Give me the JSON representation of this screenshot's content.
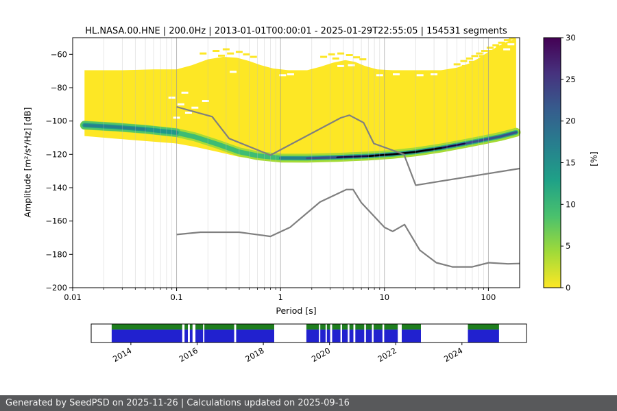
{
  "title": "HL.NASA.00.HNE | 200.0Hz | 2013-01-01T00:00:01 - 2025-01-29T22:55:05 | 154531 segments",
  "footer": {
    "text": "Generated by SeedPSD on 2025-11-26 | Calculations updated on 2025-09-16"
  },
  "chart_data": {
    "type": "heatmap",
    "title": "HL.NASA.00.HNE | 200.0Hz | 2013-01-01T00:00:01 - 2025-01-29T22:55:05 | 154531 segments",
    "xlabel": "Period [s]",
    "ylabel": "Amplitude [m²/s⁴/Hz] [dB]",
    "x_scale": "log",
    "xlim": [
      0.01,
      200
    ],
    "ylim": [
      -200,
      -50
    ],
    "x_tick_values": [
      0.01,
      0.1,
      1,
      10,
      100
    ],
    "x_tick_labels": [
      "0.01",
      "0.1",
      "1",
      "10",
      "100"
    ],
    "y_tick_values": [
      -60,
      -80,
      -100,
      -120,
      -140,
      -160,
      -180,
      -200
    ],
    "grid": {
      "vertical_major": true,
      "vertical_minor": true,
      "horizontal": false
    },
    "colorbar": {
      "label": "[%]",
      "range": [
        0,
        30
      ],
      "ticks": [
        0,
        5,
        10,
        15,
        20,
        25,
        30
      ],
      "colormap": "viridis_r",
      "stops_top_to_bottom": [
        "#440154",
        "#46327e",
        "#365c8d",
        "#277f8e",
        "#1fa187",
        "#4ac16d",
        "#a0da39",
        "#fde725"
      ]
    },
    "histogram": {
      "fill_color": "#fde725",
      "top_edge": [
        [
          0.013,
          -69.5
        ],
        [
          0.03,
          -69.5
        ],
        [
          0.06,
          -69
        ],
        [
          0.1,
          -69
        ],
        [
          0.14,
          -66.5
        ],
        [
          0.2,
          -63
        ],
        [
          0.28,
          -61.5
        ],
        [
          0.38,
          -62
        ],
        [
          0.5,
          -64
        ],
        [
          0.65,
          -66.5
        ],
        [
          0.85,
          -68.5
        ],
        [
          1.2,
          -69.5
        ],
        [
          1.8,
          -69.5
        ],
        [
          2.4,
          -67.5
        ],
        [
          3.2,
          -65
        ],
        [
          4.2,
          -63.5
        ],
        [
          5.2,
          -64.5
        ],
        [
          6.5,
          -67
        ],
        [
          8.5,
          -69
        ],
        [
          12,
          -69.5
        ],
        [
          20,
          -69.5
        ],
        [
          35,
          -69.5
        ],
        [
          50,
          -68
        ],
        [
          65,
          -65.5
        ],
        [
          80,
          -62.5
        ],
        [
          100,
          -58.5
        ],
        [
          125,
          -55
        ],
        [
          150,
          -52.5
        ],
        [
          185,
          -50.5
        ]
      ],
      "bottom_edge": [
        [
          0.013,
          -109
        ],
        [
          0.025,
          -110.5
        ],
        [
          0.05,
          -112
        ],
        [
          0.1,
          -113.5
        ],
        [
          0.15,
          -115.5
        ],
        [
          0.25,
          -118.5
        ],
        [
          0.4,
          -121.5
        ],
        [
          0.6,
          -123
        ],
        [
          1,
          -124
        ],
        [
          1.8,
          -123.8
        ],
        [
          3.5,
          -123
        ],
        [
          7,
          -122.3
        ],
        [
          12,
          -121.3
        ],
        [
          20,
          -119.8
        ],
        [
          35,
          -117.5
        ],
        [
          60,
          -114.8
        ],
        [
          90,
          -112.5
        ],
        [
          130,
          -110.5
        ],
        [
          185,
          -108
        ]
      ],
      "mode_ridge": [
        [
          0.013,
          -102.5
        ],
        [
          0.025,
          -103.5
        ],
        [
          0.05,
          -105
        ],
        [
          0.1,
          -107
        ],
        [
          0.15,
          -109.5
        ],
        [
          0.25,
          -114
        ],
        [
          0.4,
          -118.5
        ],
        [
          0.6,
          -120.8
        ],
        [
          1,
          -122.2
        ],
        [
          1.8,
          -122.3
        ],
        [
          3.5,
          -121.8
        ],
        [
          7,
          -121
        ],
        [
          12,
          -120
        ],
        [
          20,
          -118.5
        ],
        [
          35,
          -116.2
        ],
        [
          60,
          -113.5
        ],
        [
          90,
          -111.3
        ],
        [
          130,
          -109.3
        ],
        [
          185,
          -106.8
        ]
      ],
      "ridge_layers": [
        {
          "pmin": 0.013,
          "pmax": 185,
          "color": "#a5db36",
          "width": 13
        },
        {
          "pmin": 0.013,
          "pmax": 0.12,
          "color": "#54c568",
          "width": 12
        },
        {
          "pmin": 0.013,
          "pmax": 185,
          "color": "#3dbc74",
          "width": 7
        },
        {
          "pmin": 0.013,
          "pmax": 0.1,
          "color": "#1f978b",
          "width": 6
        },
        {
          "pmin": 0.013,
          "pmax": 0.05,
          "color": "#277f8e",
          "width": 3.5
        },
        {
          "pmin": 0.9,
          "pmax": 185,
          "color": "#26828e",
          "width": 4.5
        },
        {
          "pmin": 1.4,
          "pmax": 185,
          "color": "#3b518b",
          "width": 3
        },
        {
          "pmin": 2.2,
          "pmax": 80,
          "color": "#17094a",
          "width": 2.4
        },
        {
          "pmin": 6.5,
          "pmax": 36,
          "color": "#000004",
          "width": 2.6
        }
      ],
      "yellow_dashes": [
        [
          0.18,
          -59.5
        ],
        [
          0.24,
          -58
        ],
        [
          0.3,
          -57
        ],
        [
          0.33,
          -59.5
        ],
        [
          0.4,
          -58.5
        ],
        [
          0.47,
          -60
        ],
        [
          0.55,
          -61.5
        ],
        [
          0.27,
          -60.8
        ],
        [
          2.6,
          -61.5
        ],
        [
          3.1,
          -60
        ],
        [
          3.8,
          -59.5
        ],
        [
          4.6,
          -60.5
        ],
        [
          5.4,
          -61.8
        ],
        [
          3.4,
          -62.5
        ],
        [
          6.2,
          -63
        ],
        [
          50,
          -66
        ],
        [
          58,
          -64
        ],
        [
          66,
          -62.5
        ],
        [
          74,
          -61
        ],
        [
          82,
          -59.5
        ],
        [
          92,
          -58
        ],
        [
          104,
          -56
        ],
        [
          118,
          -54.5
        ],
        [
          134,
          -53
        ],
        [
          152,
          -51.5
        ],
        [
          170,
          -50.5
        ],
        [
          88,
          -61
        ],
        [
          108,
          -58
        ],
        [
          128,
          -55.5
        ],
        [
          145,
          -53.5
        ],
        [
          60,
          -67
        ],
        [
          70,
          -64.5
        ]
      ],
      "white_dashes": [
        [
          0.09,
          -86
        ],
        [
          0.11,
          -90
        ],
        [
          0.13,
          -95
        ],
        [
          0.1,
          -98
        ],
        [
          0.15,
          -92
        ],
        [
          0.19,
          -88
        ],
        [
          0.12,
          -83
        ],
        [
          1.05,
          -72.5
        ],
        [
          1.25,
          -72
        ],
        [
          9,
          -72.5
        ],
        [
          13,
          -72
        ],
        [
          22,
          -72.5
        ],
        [
          30,
          -72
        ],
        [
          3.8,
          -67
        ],
        [
          4.8,
          -66.5
        ],
        [
          0.35,
          -70.5
        ],
        [
          150,
          -57
        ],
        [
          165,
          -54
        ]
      ]
    },
    "noise_models": {
      "color": "#7f7f7f",
      "nhnm": [
        [
          0.1,
          -91.5
        ],
        [
          0.22,
          -97.4
        ],
        [
          0.32,
          -110.5
        ],
        [
          0.8,
          -120.5
        ],
        [
          3.8,
          -98.1
        ],
        [
          4.6,
          -96.5
        ],
        [
          6.3,
          -101.0
        ],
        [
          7.9,
          -113.5
        ],
        [
          15.4,
          -120.0
        ],
        [
          20.0,
          -138.5
        ],
        [
          200,
          -128.5
        ]
      ],
      "nlnm": [
        [
          0.1,
          -168.1
        ],
        [
          0.17,
          -166.7
        ],
        [
          0.4,
          -166.7
        ],
        [
          0.8,
          -169.2
        ],
        [
          1.24,
          -163.7
        ],
        [
          2.4,
          -148.6
        ],
        [
          4.3,
          -141.1
        ],
        [
          5.0,
          -141.1
        ],
        [
          6.0,
          -149.0
        ],
        [
          10.0,
          -163.8
        ],
        [
          12.0,
          -166.2
        ],
        [
          15.6,
          -162.1
        ],
        [
          21.9,
          -177.5
        ],
        [
          31.6,
          -185.0
        ],
        [
          45.0,
          -187.5
        ],
        [
          70.0,
          -187.5
        ],
        [
          101.0,
          -185.0
        ],
        [
          154.0,
          -185.7
        ],
        [
          200,
          -185.5
        ]
      ]
    },
    "coverage": {
      "xlim": [
        2012.8,
        2025.95
      ],
      "tick_years": [
        2014,
        2016,
        2018,
        2020,
        2022,
        2024
      ],
      "data_color": "#2121cf",
      "highlight_color": "#1e7e1e",
      "gap_color": "#ffffff",
      "segments": [
        [
          2013.42,
          2015.55
        ],
        [
          2015.62,
          2015.72
        ],
        [
          2015.78,
          2015.86
        ],
        [
          2015.95,
          2016.18
        ],
        [
          2016.22,
          2017.12
        ],
        [
          2017.18,
          2018.33
        ],
        [
          2019.3,
          2019.68
        ],
        [
          2019.72,
          2019.88
        ],
        [
          2019.92,
          2020.02
        ],
        [
          2020.08,
          2020.33
        ],
        [
          2020.38,
          2020.55
        ],
        [
          2020.6,
          2020.72
        ],
        [
          2020.78,
          2021.05
        ],
        [
          2021.1,
          2021.28
        ],
        [
          2021.33,
          2021.6
        ],
        [
          2021.65,
          2022.06
        ],
        [
          2022.18,
          2022.76
        ],
        [
          2024.18,
          2025.12
        ]
      ]
    }
  }
}
